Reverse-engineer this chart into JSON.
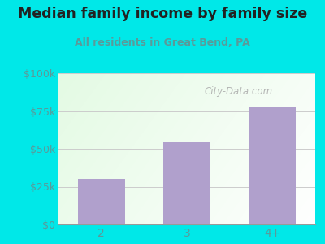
{
  "title": "Median family income by family size",
  "subtitle": "All residents in Great Bend, PA",
  "categories": [
    "2",
    "3",
    "4+"
  ],
  "values": [
    30000,
    55000,
    78000
  ],
  "bar_color": "#b0a0cc",
  "title_color": "#222222",
  "subtitle_color": "#5a9a9a",
  "ylabel_ticks": [
    0,
    25000,
    50000,
    75000,
    100000
  ],
  "ylabel_labels": [
    "$0",
    "$25k",
    "$50k",
    "$75k",
    "$100k"
  ],
  "ylim": [
    0,
    100000
  ],
  "bg_color": "#00e8e8",
  "watermark": "City-Data.com",
  "tick_color": "#5a9a9a",
  "grid_color": "#cccccc",
  "plot_left_color": "#c8e8c0",
  "plot_right_color": "#f0f8f0"
}
